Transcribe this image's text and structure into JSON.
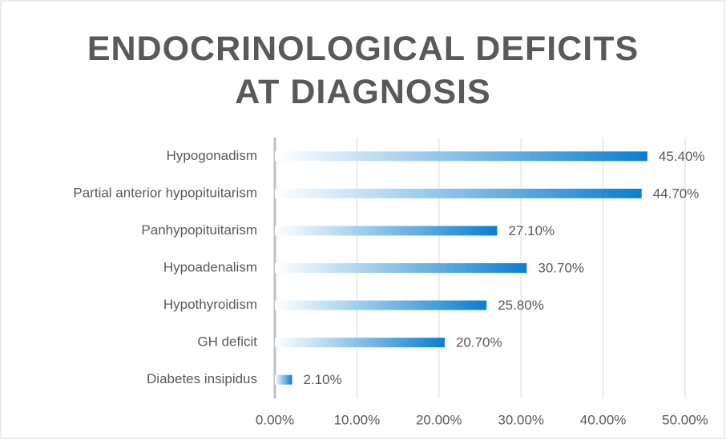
{
  "chart_data": {
    "type": "hbar",
    "title": "ENDOCRINOLOGICAL DEFICITS AT DIAGNOSIS",
    "categories": [
      "Hypogonadism",
      "Partial anterior hypopituitarism",
      "Panhypopituitarism",
      "Hypoadenalism",
      "Hypothyroidism",
      "GH deficit",
      "Diabetes insipidus"
    ],
    "values": [
      45.4,
      44.7,
      27.1,
      30.7,
      25.8,
      20.7,
      2.1
    ],
    "value_labels": [
      "45.40%",
      "44.70%",
      "27.10%",
      "30.70%",
      "25.80%",
      "20.70%",
      "2.10%"
    ],
    "color": "#0a7fd0",
    "xlim": [
      0,
      50
    ],
    "xticks": [
      {
        "value": 0,
        "label": "0.00%"
      },
      {
        "value": 10,
        "label": "10.00%"
      },
      {
        "value": 20,
        "label": "20.00%"
      },
      {
        "value": 30,
        "label": "30.00%"
      },
      {
        "value": 40,
        "label": "40.00%"
      },
      {
        "value": 50,
        "label": "50.00%"
      }
    ],
    "grid": true
  }
}
